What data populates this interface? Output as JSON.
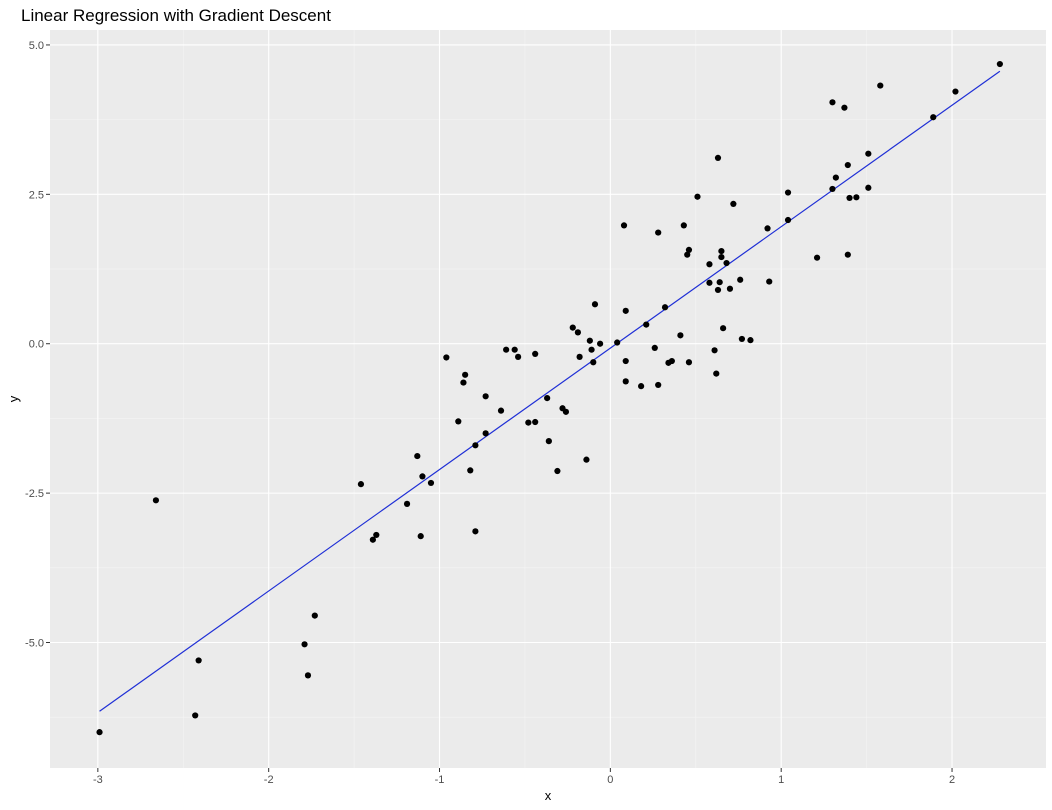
{
  "chart_data": {
    "type": "scatter",
    "title": "Linear Regression with Gradient Descent",
    "xlabel": "x",
    "ylabel": "y",
    "xlim": [
      -3.28,
      2.55
    ],
    "ylim": [
      -7.1,
      5.25
    ],
    "x_ticks": [
      -3,
      -2,
      -1,
      0,
      1,
      2
    ],
    "x_tick_labels": [
      "-3",
      "-2",
      "-1",
      "0",
      "1",
      "2"
    ],
    "y_ticks": [
      -5,
      -2.5,
      0,
      2.5,
      5
    ],
    "y_tick_labels": [
      "-5.0",
      "-2.5",
      "0.0",
      "2.5",
      "5.0"
    ],
    "grid": true,
    "background": "#ebebeb",
    "grid_major_color": "#ffffff",
    "point_color": "#000000",
    "line_color": "#1f2fd6",
    "points": [
      [
        -2.99,
        -6.5
      ],
      [
        -2.66,
        -2.62
      ],
      [
        -2.43,
        -6.22
      ],
      [
        -2.41,
        -5.3
      ],
      [
        -1.79,
        -5.03
      ],
      [
        -1.77,
        -5.55
      ],
      [
        -1.73,
        -4.55
      ],
      [
        -1.46,
        -2.35
      ],
      [
        -1.39,
        -3.28
      ],
      [
        -1.37,
        -3.2
      ],
      [
        -1.19,
        -2.68
      ],
      [
        -1.13,
        -1.88
      ],
      [
        -1.11,
        -3.22
      ],
      [
        -1.1,
        -2.22
      ],
      [
        -1.05,
        -2.33
      ],
      [
        -0.96,
        -0.23
      ],
      [
        -0.89,
        -1.3
      ],
      [
        -0.86,
        -0.65
      ],
      [
        -0.85,
        -0.52
      ],
      [
        -0.82,
        -2.12
      ],
      [
        -0.79,
        -1.7
      ],
      [
        -0.79,
        -3.14
      ],
      [
        -0.73,
        -0.88
      ],
      [
        -0.73,
        -1.5
      ],
      [
        -0.64,
        -1.12
      ],
      [
        -0.61,
        -0.1
      ],
      [
        -0.56,
        -0.1
      ],
      [
        -0.54,
        -0.22
      ],
      [
        -0.48,
        -1.32
      ],
      [
        -0.44,
        -1.31
      ],
      [
        -0.44,
        -0.17
      ],
      [
        -0.37,
        -0.91
      ],
      [
        -0.36,
        -1.63
      ],
      [
        -0.31,
        -2.13
      ],
      [
        -0.28,
        -1.08
      ],
      [
        -0.26,
        -1.14
      ],
      [
        -0.22,
        0.27
      ],
      [
        -0.19,
        0.19
      ],
      [
        -0.18,
        -0.22
      ],
      [
        -0.14,
        -1.94
      ],
      [
        -0.12,
        0.05
      ],
      [
        -0.11,
        -0.1
      ],
      [
        -0.1,
        -0.31
      ],
      [
        -0.09,
        0.66
      ],
      [
        -0.06,
        0.0
      ],
      [
        0.04,
        0.02
      ],
      [
        0.08,
        1.98
      ],
      [
        0.09,
        -0.29
      ],
      [
        0.09,
        -0.63
      ],
      [
        0.09,
        0.55
      ],
      [
        0.18,
        -0.71
      ],
      [
        0.21,
        0.32
      ],
      [
        0.26,
        -0.07
      ],
      [
        0.28,
        -0.69
      ],
      [
        0.28,
        1.86
      ],
      [
        0.32,
        0.61
      ],
      [
        0.34,
        -0.32
      ],
      [
        0.36,
        -0.29
      ],
      [
        0.41,
        0.14
      ],
      [
        0.43,
        1.98
      ],
      [
        0.45,
        1.49
      ],
      [
        0.46,
        -0.31
      ],
      [
        0.46,
        1.57
      ],
      [
        0.51,
        2.46
      ],
      [
        0.58,
        1.02
      ],
      [
        0.58,
        1.33
      ],
      [
        0.61,
        -0.11
      ],
      [
        0.62,
        -0.5
      ],
      [
        0.63,
        0.9
      ],
      [
        0.63,
        3.11
      ],
      [
        0.64,
        1.03
      ],
      [
        0.65,
        1.55
      ],
      [
        0.65,
        1.45
      ],
      [
        0.66,
        0.26
      ],
      [
        0.68,
        1.35
      ],
      [
        0.7,
        0.92
      ],
      [
        0.72,
        2.34
      ],
      [
        0.76,
        1.07
      ],
      [
        0.77,
        0.08
      ],
      [
        0.82,
        0.06
      ],
      [
        0.92,
        1.93
      ],
      [
        0.93,
        1.04
      ],
      [
        1.04,
        2.53
      ],
      [
        1.04,
        2.07
      ],
      [
        1.21,
        1.44
      ],
      [
        1.3,
        2.59
      ],
      [
        1.3,
        4.04
      ],
      [
        1.32,
        2.78
      ],
      [
        1.37,
        3.95
      ],
      [
        1.39,
        2.99
      ],
      [
        1.39,
        1.49
      ],
      [
        1.4,
        2.44
      ],
      [
        1.44,
        2.45
      ],
      [
        1.51,
        3.18
      ],
      [
        1.51,
        2.61
      ],
      [
        1.58,
        4.32
      ],
      [
        1.89,
        3.79
      ],
      [
        2.02,
        4.22
      ],
      [
        2.28,
        4.68
      ]
    ],
    "line": {
      "x": [
        -2.99,
        2.28
      ],
      "y": [
        -6.15,
        4.56
      ]
    }
  }
}
